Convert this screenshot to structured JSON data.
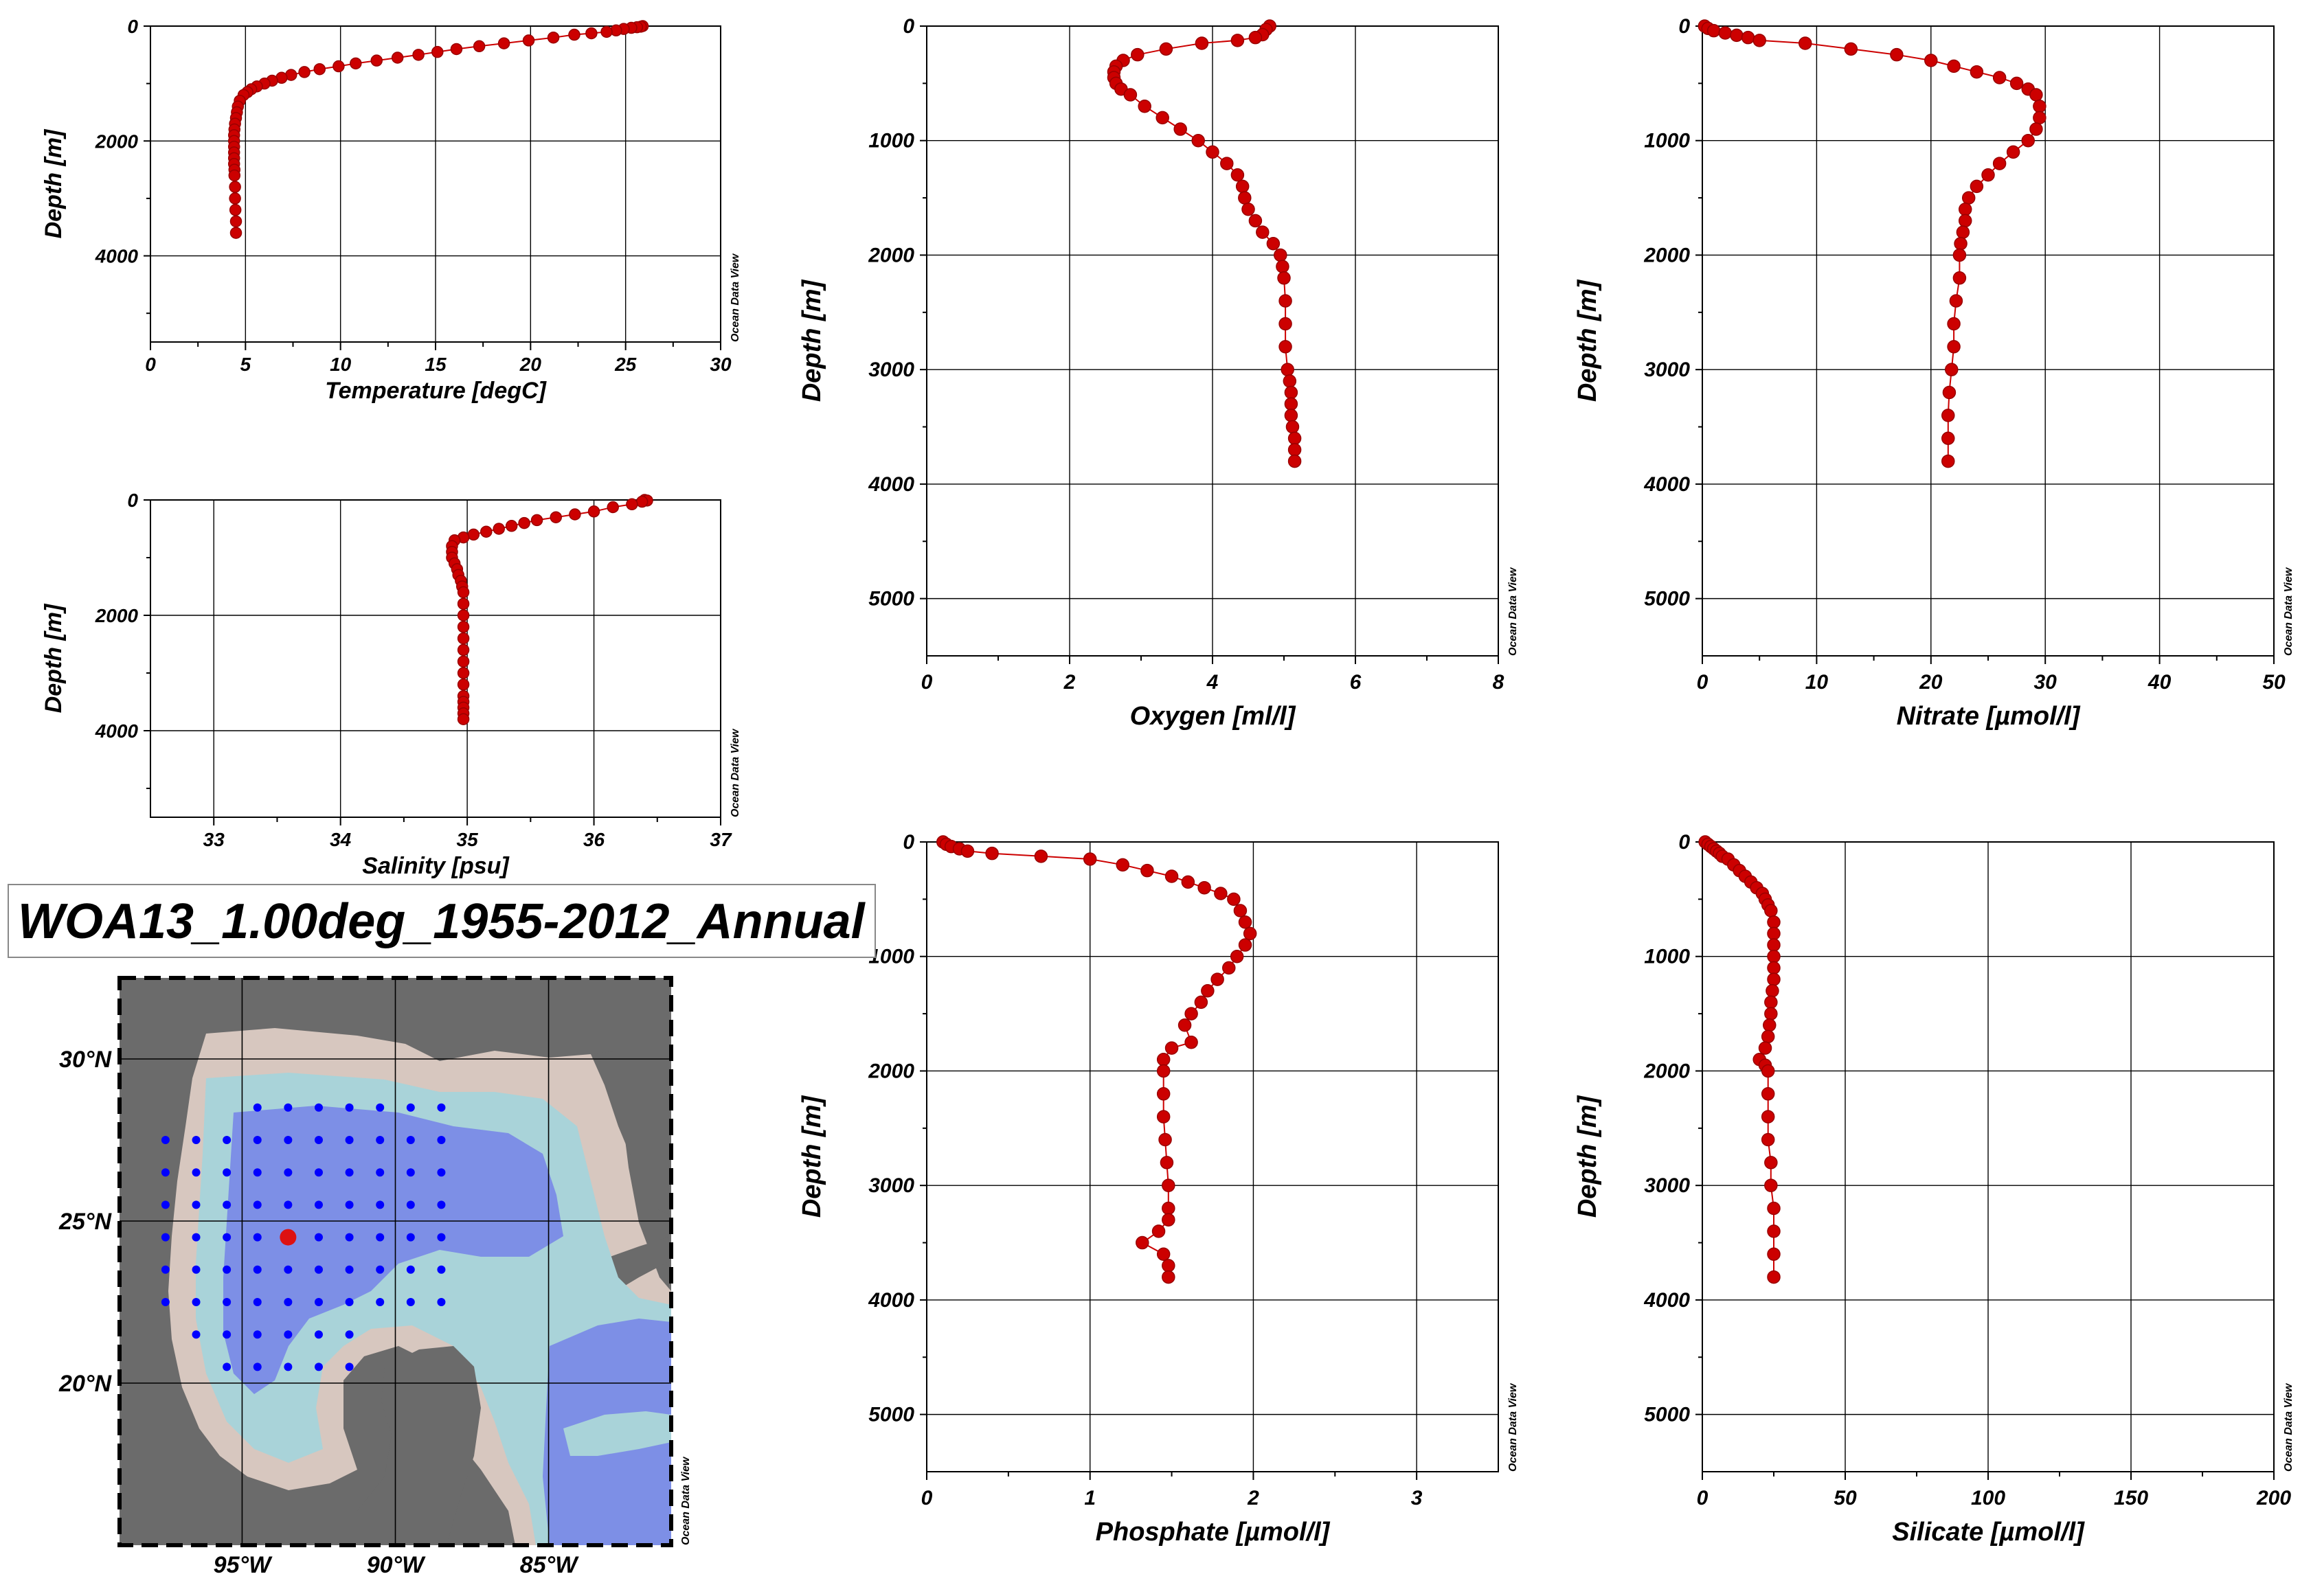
{
  "title": "WOA13_1.00deg_1955-2012_Annual",
  "watermark": "Ocean Data View",
  "colors": {
    "profile": "#cc0000",
    "profile_edge": "#990000",
    "grid": "#000000",
    "station": "#0000ff",
    "selected_station": "#dd1111"
  },
  "chart_data": [
    {
      "type": "line+scatter",
      "id": "temperature",
      "xlabel": "Temperature [degC]",
      "ylabel": "Depth [m]",
      "xlim": [
        0,
        30
      ],
      "ylim": [
        5500,
        0
      ],
      "inverted_y": true,
      "xticks": [
        0,
        5,
        10,
        15,
        20,
        25,
        30
      ],
      "yticks": [
        0,
        2000,
        4000
      ],
      "grid": true,
      "x": [
        25.9,
        25.8,
        25.6,
        25.3,
        24.9,
        24.5,
        24.0,
        23.2,
        22.3,
        21.2,
        19.9,
        18.6,
        17.3,
        16.1,
        15.1,
        14.1,
        13.0,
        11.9,
        10.8,
        9.9,
        8.9,
        8.1,
        7.4,
        6.9,
        6.4,
        6.0,
        5.6,
        5.3,
        5.1,
        4.9,
        4.7,
        4.6,
        4.55,
        4.5,
        4.45,
        4.42,
        4.4,
        4.4,
        4.4,
        4.4,
        4.4,
        4.4,
        4.42,
        4.42,
        4.45,
        4.45,
        4.47,
        4.5,
        4.5
      ],
      "y": [
        0,
        10,
        20,
        30,
        50,
        75,
        100,
        125,
        150,
        200,
        250,
        300,
        350,
        400,
        450,
        500,
        550,
        600,
        650,
        700,
        750,
        800,
        850,
        900,
        950,
        1000,
        1050,
        1100,
        1150,
        1200,
        1300,
        1400,
        1500,
        1600,
        1700,
        1800,
        1900,
        2000,
        2100,
        2200,
        2300,
        2400,
        2500,
        2600,
        2800,
        3000,
        3200,
        3400,
        3600
      ]
    },
    {
      "type": "line+scatter",
      "id": "salinity",
      "xlabel": "Salinity [psu]",
      "ylabel": "Depth [m]",
      "xlim": [
        32.5,
        37
      ],
      "ylim": [
        5500,
        0
      ],
      "inverted_y": true,
      "xticks": [
        33,
        34,
        35,
        36,
        37
      ],
      "yticks": [
        0,
        2000,
        4000
      ],
      "grid": true,
      "x": [
        36.4,
        36.42,
        36.38,
        36.3,
        36.15,
        36.0,
        35.85,
        35.7,
        35.55,
        35.45,
        35.35,
        35.25,
        35.15,
        35.05,
        34.97,
        34.9,
        34.88,
        34.88,
        34.88,
        34.9,
        34.92,
        34.93,
        34.95,
        34.96,
        34.97,
        34.97,
        34.97,
        34.97,
        34.97,
        34.97,
        34.97,
        34.97,
        34.97,
        34.97,
        34.97,
        34.97,
        34.97,
        34.97
      ],
      "y": [
        0,
        10,
        30,
        75,
        125,
        200,
        250,
        300,
        350,
        400,
        450,
        500,
        550,
        600,
        650,
        700,
        800,
        900,
        1000,
        1100,
        1200,
        1300,
        1400,
        1500,
        1600,
        1800,
        2000,
        2200,
        2400,
        2600,
        2800,
        3000,
        3200,
        3400,
        3500,
        3600,
        3700,
        3800
      ]
    },
    {
      "type": "line+scatter",
      "id": "oxygen",
      "xlabel": "Oxygen [ml/l]",
      "ylabel": "Depth [m]",
      "xlim": [
        0,
        8
      ],
      "ylim": [
        5500,
        0
      ],
      "inverted_y": true,
      "xticks": [
        0,
        2,
        4,
        6,
        8
      ],
      "yticks": [
        0,
        1000,
        2000,
        3000,
        4000,
        5000
      ],
      "grid": true,
      "x": [
        4.8,
        4.75,
        4.7,
        4.6,
        4.35,
        3.85,
        3.35,
        2.95,
        2.75,
        2.65,
        2.62,
        2.62,
        2.65,
        2.72,
        2.85,
        3.05,
        3.3,
        3.55,
        3.8,
        4.0,
        4.2,
        4.35,
        4.42,
        4.45,
        4.5,
        4.6,
        4.7,
        4.85,
        4.95,
        4.98,
        5.0,
        5.02,
        5.02,
        5.02,
        5.05,
        5.08,
        5.1,
        5.1,
        5.1,
        5.12,
        5.15,
        5.15,
        5.15
      ],
      "y": [
        0,
        30,
        75,
        100,
        125,
        150,
        200,
        250,
        300,
        350,
        400,
        450,
        500,
        550,
        600,
        700,
        800,
        900,
        1000,
        1100,
        1200,
        1300,
        1400,
        1500,
        1600,
        1700,
        1800,
        1900,
        2000,
        2100,
        2200,
        2400,
        2600,
        2800,
        3000,
        3100,
        3200,
        3300,
        3400,
        3500,
        3600,
        3700,
        3800
      ]
    },
    {
      "type": "line+scatter",
      "id": "nitrate",
      "xlabel": "Nitrate [µmol/l]",
      "ylabel": "Depth [m]",
      "xlim": [
        0,
        50
      ],
      "ylim": [
        5500,
        0
      ],
      "inverted_y": true,
      "xticks": [
        0,
        10,
        20,
        30,
        40,
        50
      ],
      "yticks": [
        0,
        1000,
        2000,
        3000,
        4000,
        5000
      ],
      "grid": true,
      "x": [
        0.2,
        0.5,
        1.0,
        2.0,
        3.0,
        4.0,
        5.0,
        9.0,
        13.0,
        17.0,
        20.0,
        22.0,
        24.0,
        26.0,
        27.5,
        28.5,
        29.2,
        29.5,
        29.5,
        29.2,
        28.5,
        27.2,
        26.0,
        25.0,
        24.0,
        23.3,
        23.0,
        23.0,
        22.8,
        22.6,
        22.5,
        22.5,
        22.2,
        22.0,
        22.0,
        21.8,
        21.6,
        21.5,
        21.5,
        21.5
      ],
      "y": [
        0,
        20,
        40,
        60,
        80,
        100,
        125,
        150,
        200,
        250,
        300,
        350,
        400,
        450,
        500,
        550,
        600,
        700,
        800,
        900,
        1000,
        1100,
        1200,
        1300,
        1400,
        1500,
        1600,
        1700,
        1800,
        1900,
        2000,
        2200,
        2400,
        2600,
        2800,
        3000,
        3200,
        3400,
        3600,
        3800
      ]
    },
    {
      "type": "line+scatter",
      "id": "phosphate",
      "xlabel": "Phosphate [µmol/l]",
      "ylabel": "Depth [m]",
      "xlim": [
        0,
        3.5
      ],
      "ylim": [
        5500,
        0
      ],
      "inverted_y": true,
      "xticks": [
        0,
        1,
        2,
        3
      ],
      "yticks": [
        0,
        1000,
        2000,
        3000,
        4000,
        5000
      ],
      "grid": true,
      "x": [
        0.1,
        0.12,
        0.15,
        0.2,
        0.25,
        0.4,
        0.7,
        1.0,
        1.2,
        1.35,
        1.5,
        1.6,
        1.7,
        1.8,
        1.88,
        1.92,
        1.95,
        1.98,
        1.95,
        1.9,
        1.85,
        1.78,
        1.72,
        1.68,
        1.62,
        1.58,
        1.62,
        1.5,
        1.45,
        1.45,
        1.45,
        1.45,
        1.46,
        1.47,
        1.48,
        1.48,
        1.48,
        1.42,
        1.32,
        1.45,
        1.48,
        1.48
      ],
      "y": [
        0,
        20,
        40,
        60,
        80,
        100,
        125,
        150,
        200,
        250,
        300,
        350,
        400,
        450,
        500,
        600,
        700,
        800,
        900,
        1000,
        1100,
        1200,
        1300,
        1400,
        1500,
        1600,
        1750,
        1800,
        1900,
        2000,
        2200,
        2400,
        2600,
        2800,
        3000,
        3200,
        3300,
        3400,
        3500,
        3600,
        3700,
        3800
      ]
    },
    {
      "type": "line+scatter",
      "id": "silicate",
      "xlabel": "Silicate [µmol/l]",
      "ylabel": "Depth [m]",
      "xlim": [
        0,
        200
      ],
      "ylim": [
        5500,
        0
      ],
      "inverted_y": true,
      "xticks": [
        0,
        50,
        100,
        150,
        200
      ],
      "yticks": [
        0,
        1000,
        2000,
        3000,
        4000,
        5000
      ],
      "grid": true,
      "x": [
        1,
        2,
        3,
        4,
        5,
        6,
        7,
        9,
        11,
        13,
        15,
        17,
        19,
        21,
        22,
        23,
        24,
        25,
        25,
        25,
        25,
        25,
        25,
        24.5,
        24,
        24,
        23.5,
        23,
        22,
        20,
        22,
        23,
        23,
        23,
        23,
        24,
        24,
        25,
        25,
        25,
        25
      ],
      "y": [
        0,
        20,
        40,
        60,
        80,
        100,
        125,
        150,
        200,
        250,
        300,
        350,
        400,
        450,
        500,
        550,
        600,
        700,
        800,
        900,
        1000,
        1100,
        1200,
        1300,
        1400,
        1500,
        1600,
        1700,
        1800,
        1900,
        1950,
        2000,
        2200,
        2400,
        2600,
        2800,
        3000,
        3200,
        3400,
        3600,
        3800
      ]
    }
  ],
  "map": {
    "lat_ticks": [
      "30°N",
      "25°N",
      "20°N"
    ],
    "lon_ticks": [
      "95°W",
      "90°W",
      "85°W"
    ],
    "lat_values": [
      30,
      25,
      20
    ],
    "lon_values": [
      -95,
      -90,
      -85
    ],
    "lon_range": [
      -99,
      -81
    ],
    "lat_range": [
      15,
      32.5
    ],
    "selected_station": {
      "lon": -93.5,
      "lat": 24.5
    },
    "station_rows": [
      {
        "lat": 28.5,
        "lons": [
          -94.5,
          -93.5,
          -92.5,
          -91.5,
          -90.5,
          -89.5,
          -88.5
        ]
      },
      {
        "lat": 27.5,
        "lons": [
          -97.5,
          -96.5,
          -95.5,
          -94.5,
          -93.5,
          -92.5,
          -91.5,
          -90.5,
          -89.5,
          -88.5
        ]
      },
      {
        "lat": 26.5,
        "lons": [
          -97.5,
          -96.5,
          -95.5,
          -94.5,
          -93.5,
          -92.5,
          -91.5,
          -90.5,
          -89.5,
          -88.5
        ]
      },
      {
        "lat": 25.5,
        "lons": [
          -97.5,
          -96.5,
          -95.5,
          -94.5,
          -93.5,
          -92.5,
          -91.5,
          -90.5,
          -89.5,
          -88.5
        ]
      },
      {
        "lat": 24.5,
        "lons": [
          -97.5,
          -96.5,
          -95.5,
          -94.5,
          -92.5,
          -91.5,
          -90.5,
          -89.5,
          -88.5
        ]
      },
      {
        "lat": 23.5,
        "lons": [
          -97.5,
          -96.5,
          -95.5,
          -94.5,
          -93.5,
          -92.5,
          -91.5,
          -90.5,
          -89.5,
          -88.5
        ]
      },
      {
        "lat": 22.5,
        "lons": [
          -97.5,
          -96.5,
          -95.5,
          -94.5,
          -93.5,
          -92.5,
          -91.5,
          -90.5,
          -89.5,
          -88.5
        ]
      },
      {
        "lat": 21.5,
        "lons": [
          -96.5,
          -95.5,
          -94.5,
          -93.5,
          -92.5,
          -91.5
        ]
      },
      {
        "lat": 20.5,
        "lons": [
          -95.5,
          -94.5,
          -93.5,
          -92.5,
          -91.5
        ]
      }
    ]
  }
}
